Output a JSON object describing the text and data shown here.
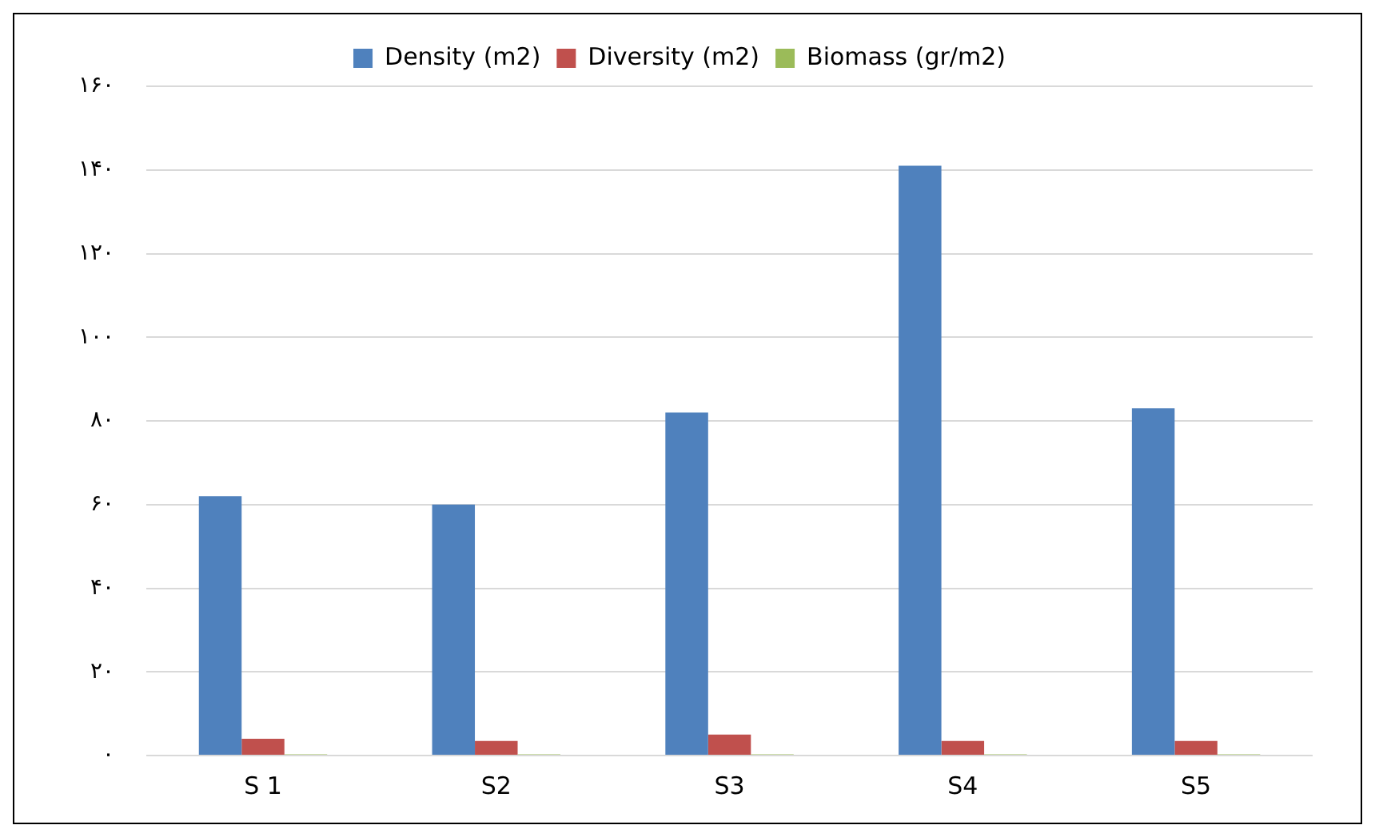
{
  "chart_data": {
    "type": "bar",
    "categories": [
      "S 1",
      "S2",
      "S3",
      "S4",
      "S5"
    ],
    "series": [
      {
        "name": "Density (m2)",
        "color": "#4f81bd",
        "values": [
          62,
          60,
          82,
          141,
          83
        ]
      },
      {
        "name": "Diversity (m2)",
        "color": "#c0504d",
        "values": [
          4,
          3.5,
          5,
          3.5,
          3.5
        ]
      },
      {
        "name": "Biomass (gr/m2)",
        "color": "#9bbb59",
        "values": [
          0.3,
          0.3,
          0.3,
          0.3,
          0.3
        ]
      }
    ],
    "ylim": [
      0,
      160
    ],
    "yticks": [
      {
        "value": 0,
        "label": "۰"
      },
      {
        "value": 20,
        "label": "۲۰"
      },
      {
        "value": 40,
        "label": "۴۰"
      },
      {
        "value": 60,
        "label": "۶۰"
      },
      {
        "value": 80,
        "label": "۸۰"
      },
      {
        "value": 100,
        "label": "۱۰۰"
      },
      {
        "value": 120,
        "label": "۱۲۰"
      },
      {
        "value": 140,
        "label": "۱۴۰"
      },
      {
        "value": 160,
        "label": "۱۶۰"
      }
    ],
    "grid": "y",
    "legend": "top"
  }
}
